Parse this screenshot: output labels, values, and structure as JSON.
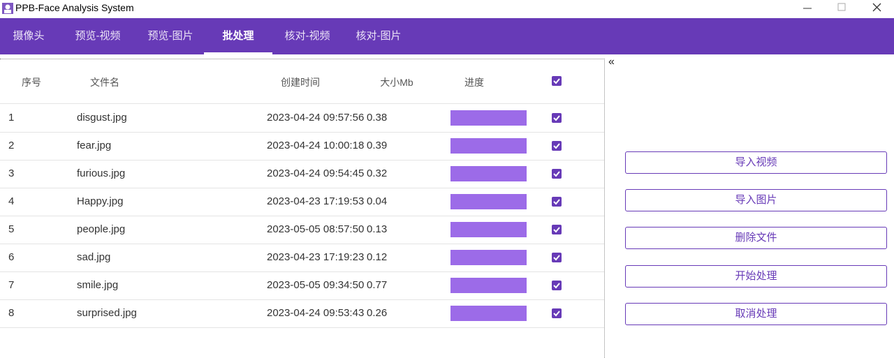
{
  "window": {
    "title": "PPB-Face Analysis System"
  },
  "tabs": [
    "摄像头",
    "预览-视频",
    "预览-图片",
    "批处理",
    "核对-视频",
    "核对-图片"
  ],
  "active_tab": 3,
  "table": {
    "headers": [
      "序号",
      "文件名",
      "创建时间",
      "大小Mb",
      "进度"
    ],
    "rows": [
      [
        "1",
        "disgust.jpg",
        "2023-04-24 09:57:56",
        "0.38"
      ],
      [
        "2",
        "fear.jpg",
        "2023-04-24 10:00:18",
        "0.39"
      ],
      [
        "3",
        "furious.jpg",
        "2023-04-24 09:54:45",
        "0.32"
      ],
      [
        "4",
        "Happy.jpg",
        "2023-04-23 17:19:53",
        "0.04"
      ],
      [
        "5",
        "people.jpg",
        "2023-05-05 08:57:50",
        "0.13"
      ],
      [
        "6",
        "sad.jpg",
        "2023-04-23 17:19:23",
        "0.12"
      ],
      [
        "7",
        "smile.jpg",
        "2023-05-05 09:34:50",
        "0.77"
      ],
      [
        "8",
        "surprised.jpg",
        "2023-04-24 09:53:43",
        "0.26"
      ]
    ]
  },
  "panel": {
    "collapse": "«",
    "buttons": [
      "导入视频",
      "导入图片",
      "删除文件",
      "开始处理",
      "取消处理"
    ]
  }
}
